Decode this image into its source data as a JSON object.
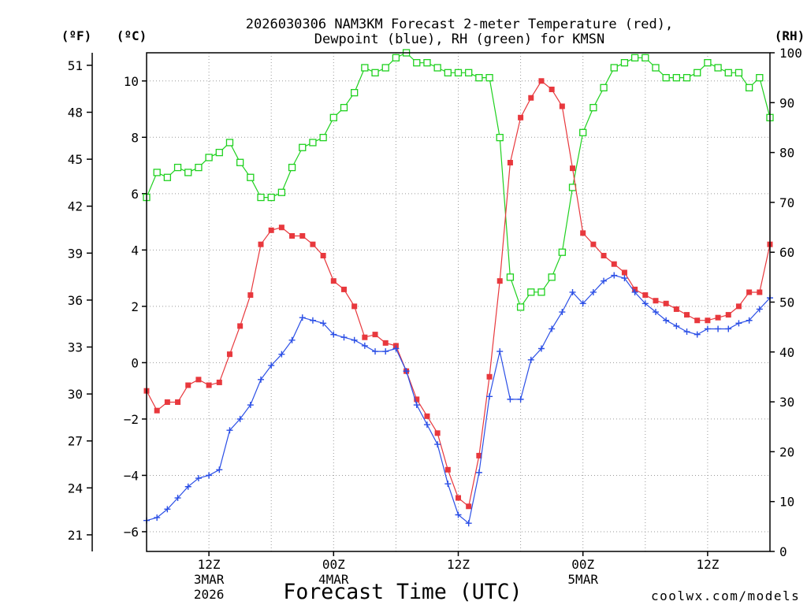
{
  "colors": {
    "background": "#ffffff",
    "axis": "#000000",
    "grid": "#9a9a9a",
    "credit": "#e23b3b"
  },
  "credit": "coolwx.com/models",
  "chart_data": {
    "type": "line",
    "title": [
      "2026030306 NAM3KM Forecast 2-meter Temperature (red),",
      "Dewpoint (blue), RH (green) for KMSN"
    ],
    "xlabel": "Forecast Time (UTC)",
    "xlim": [
      "2026-03-03 06Z",
      "2026-03-05 18Z"
    ],
    "x": [
      "2026-03-03 06Z",
      "2026-03-03 07Z",
      "2026-03-03 08Z",
      "2026-03-03 09Z",
      "2026-03-03 10Z",
      "2026-03-03 11Z",
      "2026-03-03 12Z",
      "2026-03-03 13Z",
      "2026-03-03 14Z",
      "2026-03-03 15Z",
      "2026-03-03 16Z",
      "2026-03-03 17Z",
      "2026-03-03 18Z",
      "2026-03-03 19Z",
      "2026-03-03 20Z",
      "2026-03-03 21Z",
      "2026-03-03 22Z",
      "2026-03-03 23Z",
      "2026-03-04 00Z",
      "2026-03-04 01Z",
      "2026-03-04 02Z",
      "2026-03-04 03Z",
      "2026-03-04 04Z",
      "2026-03-04 05Z",
      "2026-03-04 06Z",
      "2026-03-04 07Z",
      "2026-03-04 08Z",
      "2026-03-04 09Z",
      "2026-03-04 10Z",
      "2026-03-04 11Z",
      "2026-03-04 12Z",
      "2026-03-04 13Z",
      "2026-03-04 14Z",
      "2026-03-04 15Z",
      "2026-03-04 16Z",
      "2026-03-04 17Z",
      "2026-03-04 18Z",
      "2026-03-04 19Z",
      "2026-03-04 20Z",
      "2026-03-04 21Z",
      "2026-03-04 22Z",
      "2026-03-04 23Z",
      "2026-03-05 00Z",
      "2026-03-05 01Z",
      "2026-03-05 02Z",
      "2026-03-05 03Z",
      "2026-03-05 04Z",
      "2026-03-05 05Z",
      "2026-03-05 06Z",
      "2026-03-05 07Z",
      "2026-03-05 08Z",
      "2026-03-05 09Z",
      "2026-03-05 10Z",
      "2026-03-05 11Z",
      "2026-03-05 12Z",
      "2026-03-05 13Z",
      "2026-03-05 14Z",
      "2026-03-05 15Z",
      "2026-03-05 16Z",
      "2026-03-05 17Z",
      "2026-03-05 18Z"
    ],
    "x_ticks": [
      {
        "at": "2026-03-03 12Z",
        "labels": [
          "12Z",
          "3MAR",
          "2026"
        ]
      },
      {
        "at": "2026-03-04 00Z",
        "labels": [
          "00Z",
          "4MAR"
        ]
      },
      {
        "at": "2026-03-04 12Z",
        "labels": [
          "12Z"
        ]
      },
      {
        "at": "2026-03-05 00Z",
        "labels": [
          "00Z",
          "5MAR"
        ]
      },
      {
        "at": "2026-03-05 12Z",
        "labels": [
          "12Z"
        ]
      }
    ],
    "grid": true,
    "y_axes": {
      "fahrenheit": {
        "label": "(ºF)",
        "ticks": [
          51,
          48,
          45,
          42,
          39,
          36,
          33,
          30,
          27,
          24,
          21
        ]
      },
      "celsius": {
        "label": "(ºC)",
        "ylim": [
          -6.7,
          11.0
        ],
        "ticks": [
          {
            "value": 10,
            "label": "10"
          },
          {
            "value": 8,
            "label": "8"
          },
          {
            "value": 6,
            "label": "6"
          },
          {
            "value": 4,
            "label": "4"
          },
          {
            "value": 2,
            "label": "2"
          },
          {
            "value": 0,
            "label": "0"
          },
          {
            "value": -2,
            "label": "−2"
          },
          {
            "value": -4,
            "label": "−4"
          },
          {
            "value": -6,
            "label": "−6"
          }
        ]
      },
      "rh": {
        "label": "(RH)",
        "ylim": [
          0,
          100
        ],
        "ticks": [
          100,
          90,
          80,
          70,
          60,
          50,
          40,
          30,
          20,
          10,
          0
        ]
      }
    },
    "series": [
      {
        "color": "#e8383d",
        "values": [
          -1.0,
          -1.7,
          -1.4,
          -1.4,
          -0.8,
          -0.6,
          -0.8,
          -0.7,
          0.3,
          1.3,
          2.4,
          4.2,
          4.7,
          4.8,
          4.5,
          4.5,
          4.2,
          3.8,
          2.9,
          2.6,
          2.0,
          0.9,
          1.0,
          0.7,
          0.6,
          -0.3,
          -1.3,
          -1.9,
          -2.5,
          -3.8,
          -4.8,
          -5.1,
          -3.3,
          -0.5,
          2.9,
          7.1,
          8.7,
          9.4,
          10.0,
          9.7,
          9.1,
          6.9,
          4.6,
          4.2,
          3.8,
          3.5,
          3.2,
          2.6,
          2.4,
          2.2,
          2.1,
          1.9,
          1.7,
          1.5,
          1.5,
          1.6,
          1.7,
          2.0,
          2.5,
          2.5,
          4.2
        ]
      },
      {
        "color": "#2b4fe6",
        "values": [
          -5.6,
          -5.5,
          -5.2,
          -4.8,
          -4.4,
          -4.1,
          -4.0,
          -3.8,
          -2.4,
          -2.0,
          -1.5,
          -0.6,
          -0.1,
          0.3,
          0.8,
          1.6,
          1.5,
          1.4,
          1.0,
          0.9,
          0.8,
          0.6,
          0.4,
          0.4,
          0.5,
          -0.3,
          -1.5,
          -2.2,
          -2.9,
          -4.3,
          -5.4,
          -5.7,
          -3.9,
          -1.2,
          0.4,
          -1.3,
          -1.3,
          0.1,
          0.5,
          1.2,
          1.8,
          2.5,
          2.1,
          2.5,
          2.9,
          3.1,
          3.0,
          2.5,
          2.1,
          1.8,
          1.5,
          1.3,
          1.1,
          1.0,
          1.2,
          1.2,
          1.2,
          1.4,
          1.5,
          1.9,
          2.3
        ]
      },
      {
        "color": "#1fd11f",
        "values": [
          71,
          76,
          75,
          77,
          76,
          77,
          79,
          80,
          82,
          78,
          75,
          71,
          71,
          72,
          77,
          81,
          82,
          83,
          87,
          89,
          92,
          97,
          96,
          97,
          99,
          100,
          98,
          98,
          97,
          96,
          96,
          96,
          95,
          95,
          83,
          55,
          49,
          52,
          52,
          55,
          60,
          73,
          84,
          89,
          93,
          97,
          98,
          99,
          99,
          97,
          95,
          95,
          95,
          96,
          98,
          97,
          96,
          96,
          93,
          95,
          87
        ]
      }
    ]
  }
}
